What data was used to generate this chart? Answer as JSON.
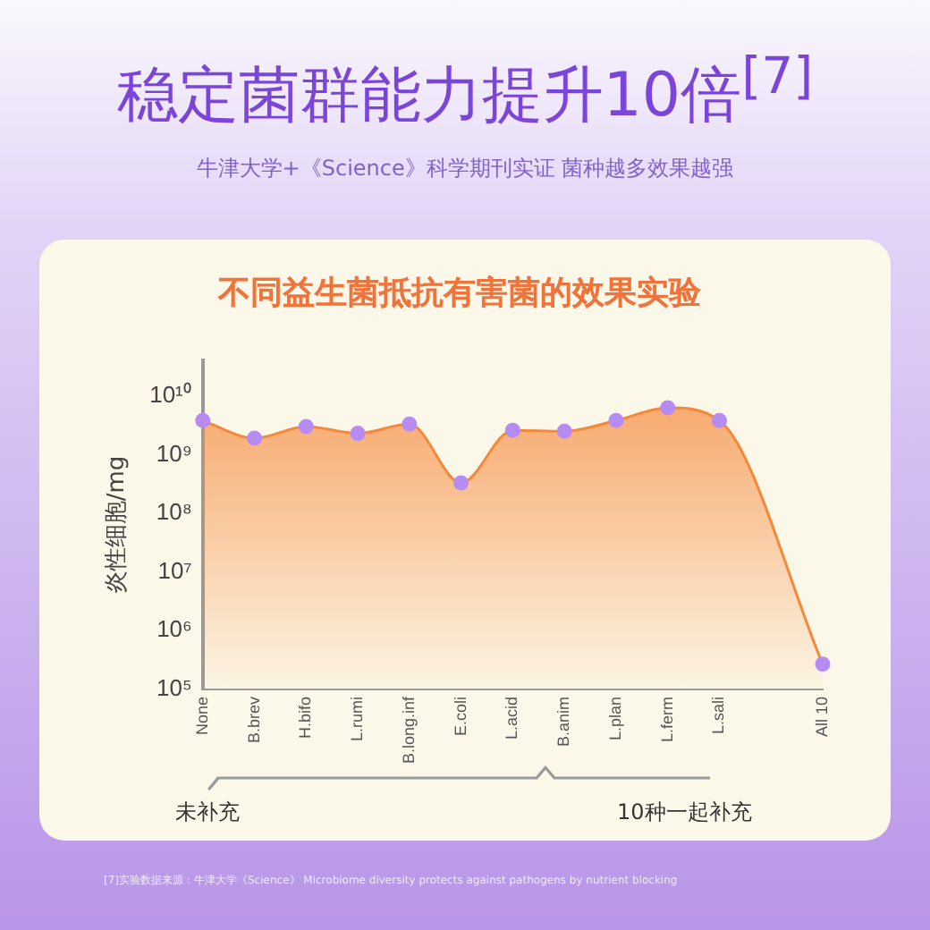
{
  "chart_data": {
    "type": "area",
    "title": "不同益生菌抵抗有害菌的效果实验",
    "ylabel": "炎性细胞/mg",
    "categories": [
      "None",
      "B.brev",
      "H.bifo",
      "L.rumi",
      "B.long.inf",
      "E.coli",
      "L.acid",
      "B.anim",
      "L.plan",
      "L.ferm",
      "L.sali",
      null,
      "All 10"
    ],
    "series": [
      {
        "color": "#f5883a",
        "values": [
          3800000000.0,
          1900000000.0,
          3000000000.0,
          2300000000.0,
          3300000000.0,
          330000000.0,
          2600000000.0,
          2500000000.0,
          3800000000.0,
          6300000000.0,
          3800000000.0,
          null,
          270000.0
        ]
      }
    ],
    "log": "y",
    "ylim": [
      100000.0,
      40000000000.0
    ],
    "yticks": [
      {
        "value": 100000.0,
        "label": "10⁵"
      },
      {
        "value": 1000000.0,
        "label": "10⁶"
      },
      {
        "value": 10000000.0,
        "label": "10⁷"
      },
      {
        "value": 100000000.0,
        "label": "10⁸"
      },
      {
        "value": 1000000000.0,
        "label": "10⁹"
      },
      {
        "value": 10000000000.0,
        "label": "10¹⁰"
      }
    ],
    "grid": false,
    "legend": false,
    "marker": "circle",
    "annotations": [
      "稳定菌群能力提升10倍$^{[7]}$",
      "牛津大学+《Science》科学期刊实证 菌种越多效果越强",
      "未补充",
      "10种一起补充",
      "[7]实验数据来源：牛津大学《Science》 Microbiome diversity protects against pathogens by nutrient blocking"
    ]
  }
}
